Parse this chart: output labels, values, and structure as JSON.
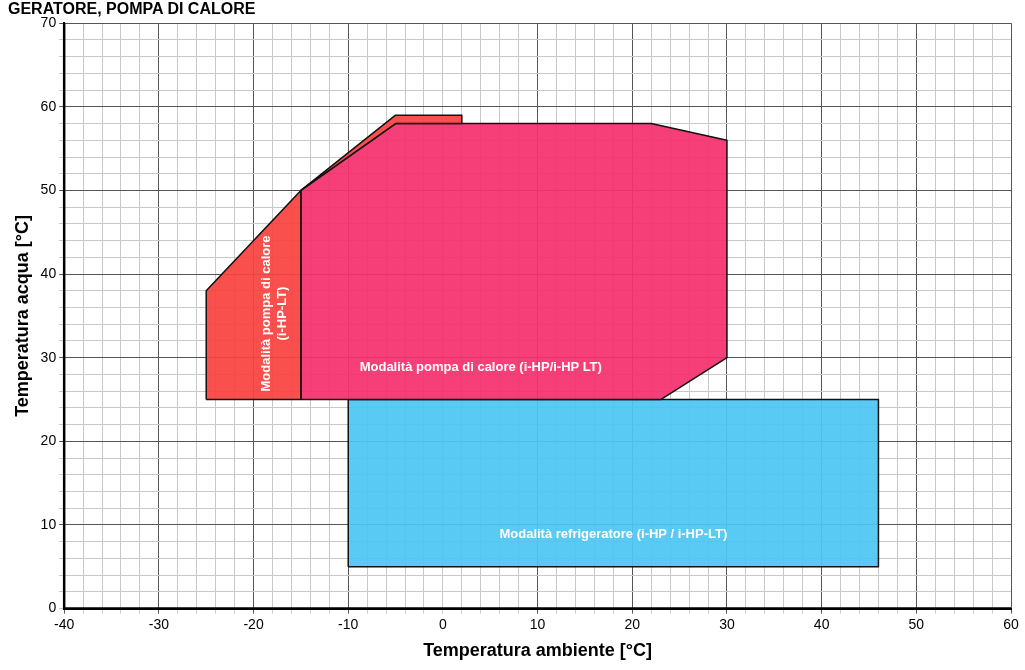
{
  "chart_data": {
    "type": "area",
    "title": "GERATORE, POMPA DI CALORE",
    "xlabel": "Temperatura ambiente [°C]",
    "ylabel": "Temperatura acqua [°C]",
    "series": [
      {
        "name": "Modalità pompa di calore\n(i-HP-LT)",
        "color": "#f9423f",
        "x": [
          -25,
          -25,
          -15,
          -5,
          2,
          2,
          -5,
          -15,
          -15
        ],
        "values": [
          25,
          38,
          50,
          59,
          59,
          58,
          58,
          50,
          25
        ]
      },
      {
        "name": "Modalità pompa di calore (i-HP/i-HP LT)",
        "color": "#f5306f",
        "x": [
          -15,
          -15,
          -5,
          22,
          30,
          30,
          23
        ],
        "values": [
          25,
          50,
          58,
          58,
          56,
          30,
          25
        ]
      },
      {
        "name": "Modalità refrigeratore (i-HP / i-HP-LT)",
        "color": "#4cc6f2",
        "x": [
          -10,
          -10,
          46,
          46
        ],
        "values": [
          5,
          25,
          25,
          5
        ]
      }
    ],
    "xlim": [
      -40,
      60
    ],
    "xticks": [
      -40,
      {
        "value": -38,
        "label": null
      },
      {
        "value": -36,
        "label": null
      },
      {
        "value": -34,
        "label": null
      },
      {
        "value": -32,
        "label": null
      },
      -30,
      {
        "value": -28,
        "label": null
      },
      {
        "value": -26,
        "label": null
      },
      {
        "value": -24,
        "label": null
      },
      {
        "value": -22,
        "label": null
      },
      -20,
      {
        "value": -18,
        "label": null
      },
      {
        "value": -16,
        "label": null
      },
      {
        "value": -14,
        "label": null
      },
      {
        "value": -12,
        "label": null
      },
      -10,
      {
        "value": -8,
        "label": null
      },
      {
        "value": -6,
        "label": null
      },
      {
        "value": -4,
        "label": null
      },
      {
        "value": -2,
        "label": null
      },
      0,
      {
        "value": 2,
        "label": null
      },
      {
        "value": 4,
        "label": null
      },
      {
        "value": 6,
        "label": null
      },
      {
        "value": 8,
        "label": null
      },
      10,
      {
        "value": 12,
        "label": null
      },
      {
        "value": 14,
        "label": null
      },
      {
        "value": 16,
        "label": null
      },
      {
        "value": 18,
        "label": null
      },
      20,
      {
        "value": 22,
        "label": null
      },
      {
        "value": 24,
        "label": null
      },
      {
        "value": 26,
        "label": null
      },
      {
        "value": 28,
        "label": null
      },
      30,
      {
        "value": 32,
        "label": null
      },
      {
        "value": 34,
        "label": null
      },
      {
        "value": 36,
        "label": null
      },
      {
        "value": 38,
        "label": null
      },
      40,
      {
        "value": 42,
        "label": null
      },
      {
        "value": 44,
        "label": null
      },
      {
        "value": 46,
        "label": null
      },
      {
        "value": 48,
        "label": null
      },
      50,
      {
        "value": 52,
        "label": null
      },
      {
        "value": 54,
        "label": null
      },
      {
        "value": 56,
        "label": null
      },
      {
        "value": 58,
        "label": null
      },
      60
    ],
    "ylim": [
      0,
      70
    ],
    "yticks": [
      0,
      {
        "value": 2,
        "label": null
      },
      {
        "value": 4,
        "label": null
      },
      {
        "value": 6,
        "label": null
      },
      {
        "value": 8,
        "label": null
      },
      10,
      {
        "value": 12,
        "label": null
      },
      {
        "value": 14,
        "label": null
      },
      {
        "value": 16,
        "label": null
      },
      {
        "value": 18,
        "label": null
      },
      20,
      {
        "value": 22,
        "label": null
      },
      {
        "value": 24,
        "label": null
      },
      {
        "value": 26,
        "label": null
      },
      {
        "value": 28,
        "label": null
      },
      30,
      {
        "value": 32,
        "label": null
      },
      {
        "value": 34,
        "label": null
      },
      {
        "value": 36,
        "label": null
      },
      {
        "value": 38,
        "label": null
      },
      40,
      {
        "value": 42,
        "label": null
      },
      {
        "value": 44,
        "label": null
      },
      {
        "value": 46,
        "label": null
      },
      {
        "value": 48,
        "label": null
      },
      50,
      {
        "value": 52,
        "label": null
      },
      {
        "value": 54,
        "label": null
      },
      {
        "value": 56,
        "label": null
      },
      {
        "value": 58,
        "label": null
      },
      60,
      {
        "value": 62,
        "label": null
      },
      {
        "value": 64,
        "label": null
      },
      {
        "value": 66,
        "label": null
      },
      {
        "value": 68,
        "label": null
      },
      70
    ],
    "grid": true
  }
}
